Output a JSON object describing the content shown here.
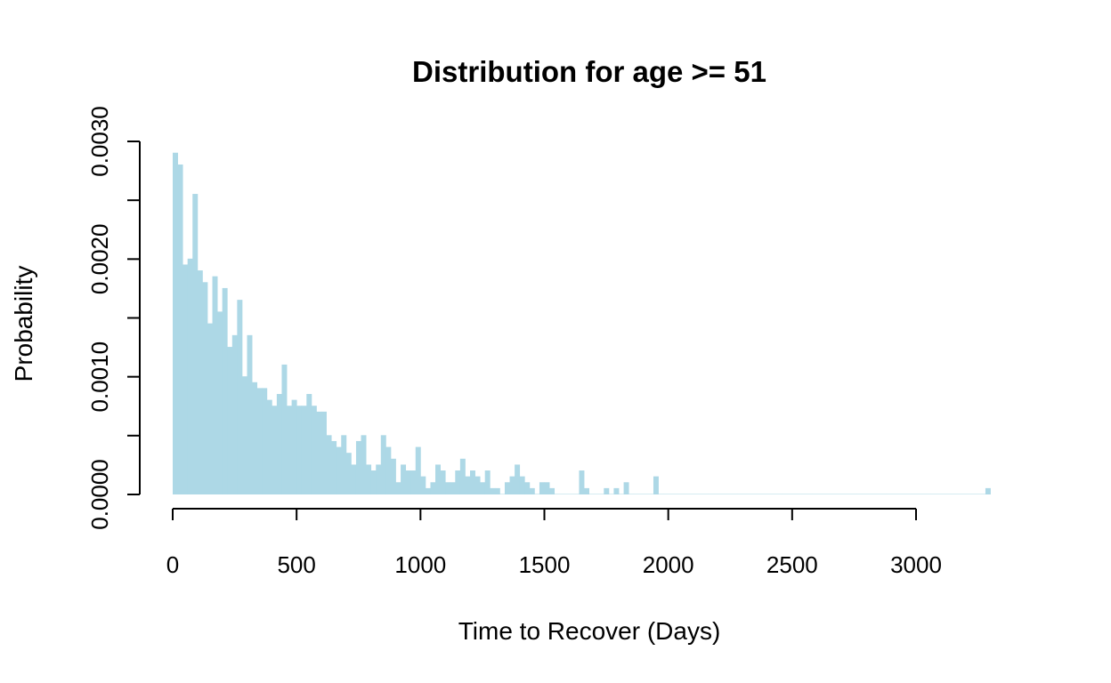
{
  "chart_data": {
    "type": "bar",
    "title": "Distribution for age >= 51",
    "xlabel": "Time to Recover (Days)",
    "ylabel": "Probability",
    "bin_width": 20,
    "x_start": 0,
    "xlim": [
      0,
      3400
    ],
    "ylim": [
      0,
      0.003
    ],
    "x_ticks": [
      "0",
      "500",
      "1000",
      "1500",
      "2000",
      "2500",
      "3000"
    ],
    "y_ticks": [
      "0.0000",
      "0.0010",
      "0.0020",
      "0.0030"
    ],
    "grid": false,
    "bar_color": "#add8e6",
    "values": [
      0.0029,
      0.0028,
      0.00195,
      0.002,
      0.00255,
      0.0019,
      0.0018,
      0.00145,
      0.00185,
      0.00155,
      0.00175,
      0.00125,
      0.00135,
      0.00165,
      0.001,
      0.00135,
      0.00095,
      0.0009,
      0.0009,
      0.0008,
      0.00075,
      0.00085,
      0.0011,
      0.00075,
      0.0008,
      0.00075,
      0.00075,
      0.00085,
      0.00075,
      0.0007,
      0.0007,
      0.0005,
      0.00045,
      0.0004,
      0.0005,
      0.00035,
      0.00025,
      0.00045,
      0.0005,
      0.00025,
      0.0002,
      0.00025,
      0.0005,
      0.0004,
      0.0003,
      0.0001,
      0.00025,
      0.0002,
      0.0002,
      0.0004,
      0.00015,
      5e-05,
      0.0001,
      0.00025,
      0.0002,
      0.0001,
      0.0001,
      0.0002,
      0.0003,
      0.00015,
      0.0002,
      0.00015,
      0.0001,
      0.0002,
      5e-05,
      5e-05,
      0.0,
      0.0001,
      0.00015,
      0.00025,
      0.00015,
      0.0001,
      5e-05,
      0.0,
      0.0001,
      0.0001,
      5e-05,
      0.0,
      0.0,
      0.0,
      0.0,
      0.0,
      0.0002,
      5e-05,
      0.0,
      0.0,
      0.0,
      5e-05,
      0.0,
      5e-05,
      0.0,
      0.0001,
      0.0,
      0.0,
      0.0,
      0.0,
      0.0,
      0.00015,
      0.0,
      0.0,
      0.0,
      0.0,
      0.0,
      0.0,
      0.0,
      0.0,
      0.0,
      0.0,
      0.0,
      0.0,
      0.0,
      0.0,
      0.0,
      0.0,
      0.0,
      0.0,
      0.0,
      0.0,
      0.0,
      0.0,
      0.0,
      0.0,
      0.0,
      0.0,
      0.0,
      0.0,
      0.0,
      0.0,
      0.0,
      0.0,
      0.0,
      0.0,
      0.0,
      0.0,
      0.0,
      0.0,
      0.0,
      0.0,
      0.0,
      0.0,
      0.0,
      0.0,
      0.0,
      0.0,
      0.0,
      0.0,
      0.0,
      0.0,
      0.0,
      0.0,
      0.0,
      0.0,
      0.0,
      0.0,
      0.0,
      0.0,
      0.0,
      0.0,
      0.0,
      0.0,
      0.0,
      0.0,
      0.0,
      0.0,
      5e-05
    ]
  }
}
